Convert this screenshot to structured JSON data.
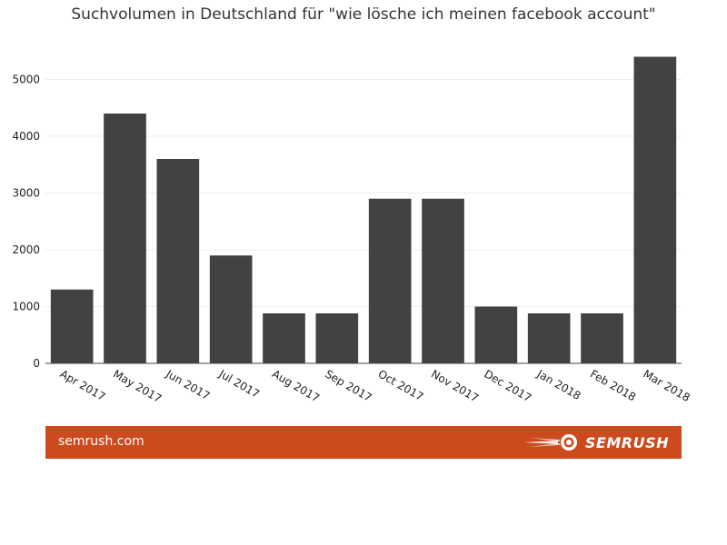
{
  "chart_data": {
    "type": "bar",
    "title": "Suchvolumen in Deutschland für \"wie lösche ich meinen facebook account\"",
    "categories": [
      "Apr 2017",
      "May 2017",
      "Jun 2017",
      "Jul 2017",
      "Aug 2017",
      "Sep 2017",
      "Oct 2017",
      "Nov 2017",
      "Dec 2017",
      "Jan 2018",
      "Feb 2018",
      "Mar 2018"
    ],
    "values": [
      1300,
      4400,
      3600,
      1900,
      880,
      880,
      2900,
      2900,
      1000,
      880,
      880,
      5400
    ],
    "ylim": [
      0,
      5600
    ],
    "yticks": [
      0,
      1000,
      2000,
      3000,
      4000,
      5000
    ],
    "xlabel": "",
    "ylabel": "",
    "grid": true,
    "bar_color": "#424242"
  },
  "footer": {
    "site": "semrush.com",
    "brand": "SEMRUSH",
    "color": "#cb4b1e"
  },
  "icons": {
    "brand_logo": "semrush-fireball-icon"
  }
}
